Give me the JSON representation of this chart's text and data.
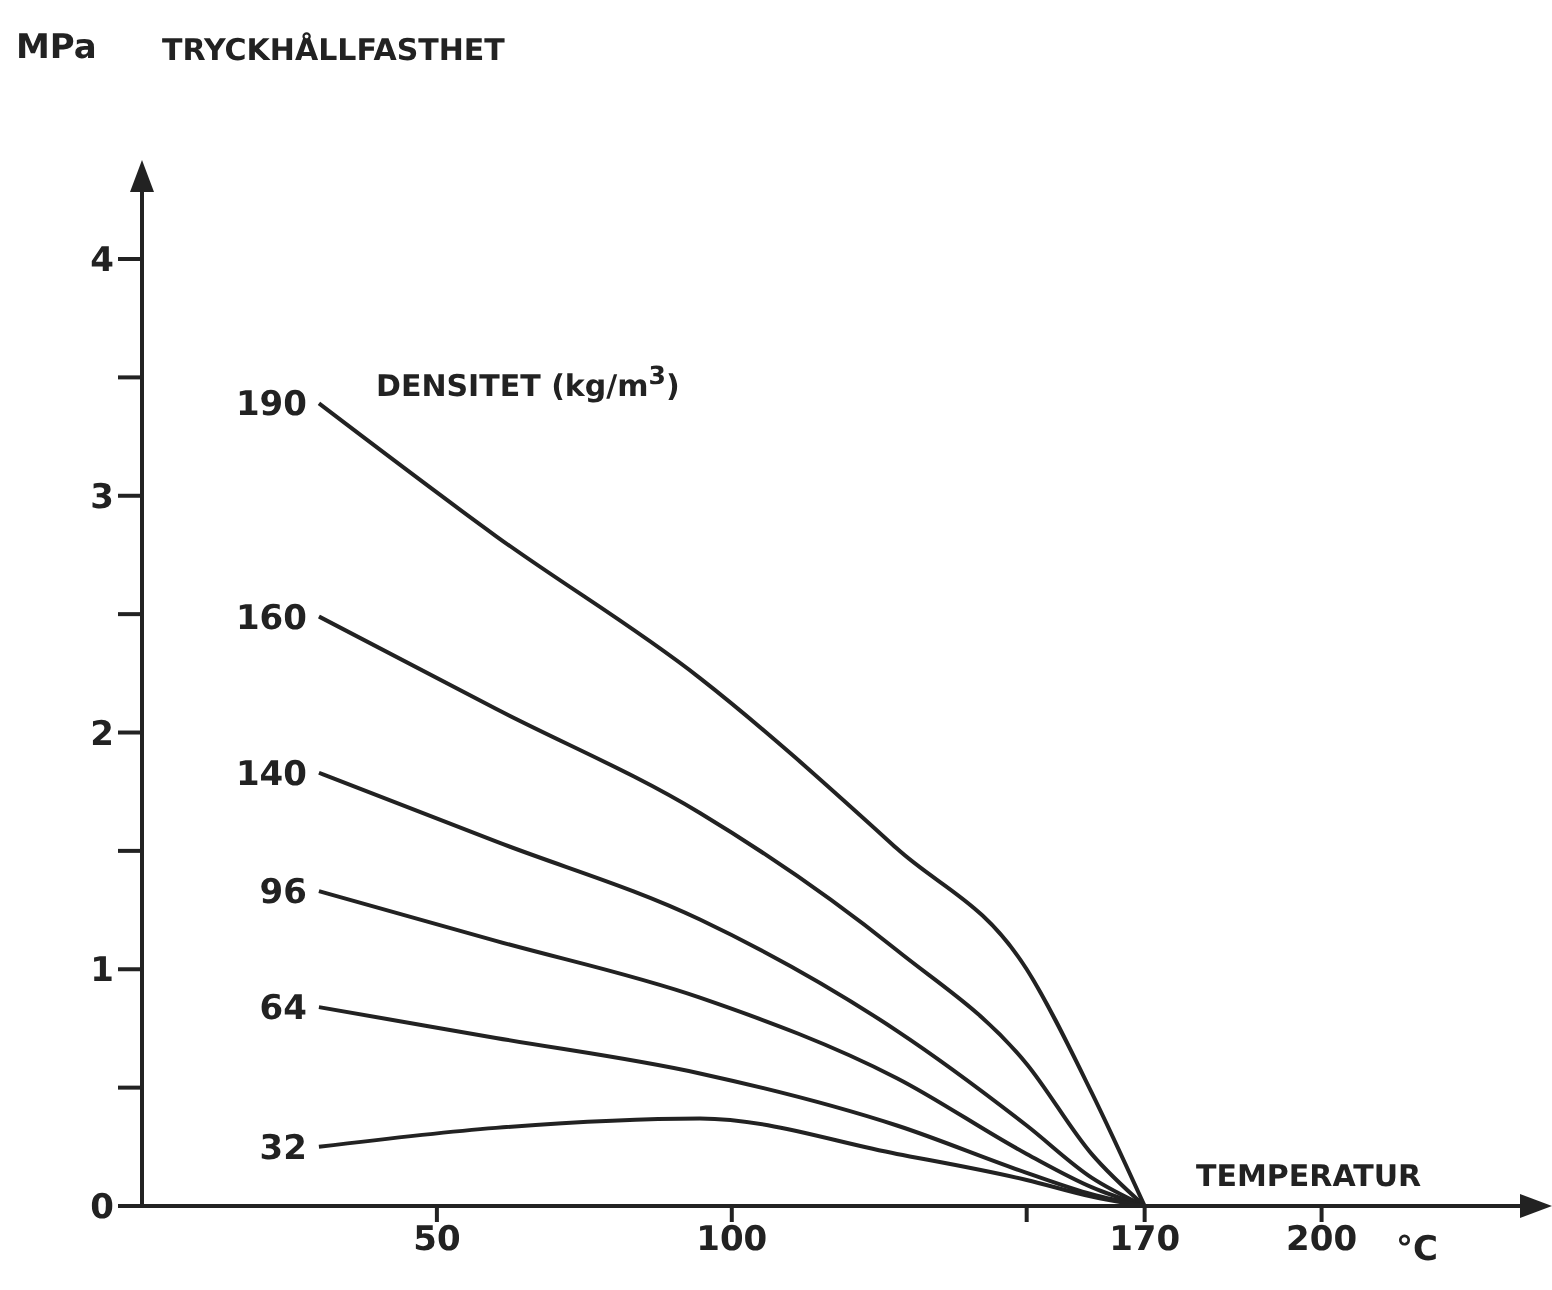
{
  "chart_data": {
    "type": "line",
    "title": "TRYCKHÅLLFASTHET",
    "ylabel": "MPa",
    "xlabel": "TEMPERATUR",
    "legend_title": "DENSITET (kg/m$^{3}$)",
    "annotations": [
      "°C"
    ],
    "xlim": [
      0,
      235
    ],
    "xticks": [
      50,
      100,
      {
        "value": 150,
        "label": null
      },
      170,
      200
    ],
    "ylim": [
      0,
      4.3
    ],
    "yticks": [
      0,
      {
        "value": 0.5,
        "label": null
      },
      1,
      {
        "value": 1.5,
        "label": null
      },
      2,
      {
        "value": 2.5,
        "label": null
      },
      3,
      {
        "value": 3.5,
        "label": null
      },
      4
    ],
    "x": [
      30,
      60,
      94.6,
      128,
      150,
      161,
      170
    ],
    "series": [
      {
        "name": "190",
        "color": "#222222",
        "values": [
          3.39,
          2.83,
          2.23,
          1.51,
          1.0,
          0.48,
          0
        ]
      },
      {
        "name": "160",
        "color": "#222222",
        "values": [
          2.49,
          2.1,
          1.66,
          1.08,
          0.6,
          0.22,
          0
        ]
      },
      {
        "name": "140",
        "color": "#222222",
        "values": [
          1.83,
          1.54,
          1.21,
          0.74,
          0.34,
          0.12,
          0
        ]
      },
      {
        "name": "96",
        "color": "#222222",
        "values": [
          1.33,
          1.12,
          0.88,
          0.54,
          0.22,
          0.08,
          0
        ]
      },
      {
        "name": "64",
        "color": "#222222",
        "values": [
          0.84,
          0.71,
          0.56,
          0.34,
          0.14,
          0.05,
          0
        ]
      },
      {
        "name": "32",
        "color": "#222222",
        "values": [
          0.25,
          0.33,
          0.37,
          0.22,
          0.11,
          0.04,
          0
        ]
      }
    ],
    "grid": false,
    "legend": false,
    "marker": "none",
    "line_style": "solid"
  }
}
